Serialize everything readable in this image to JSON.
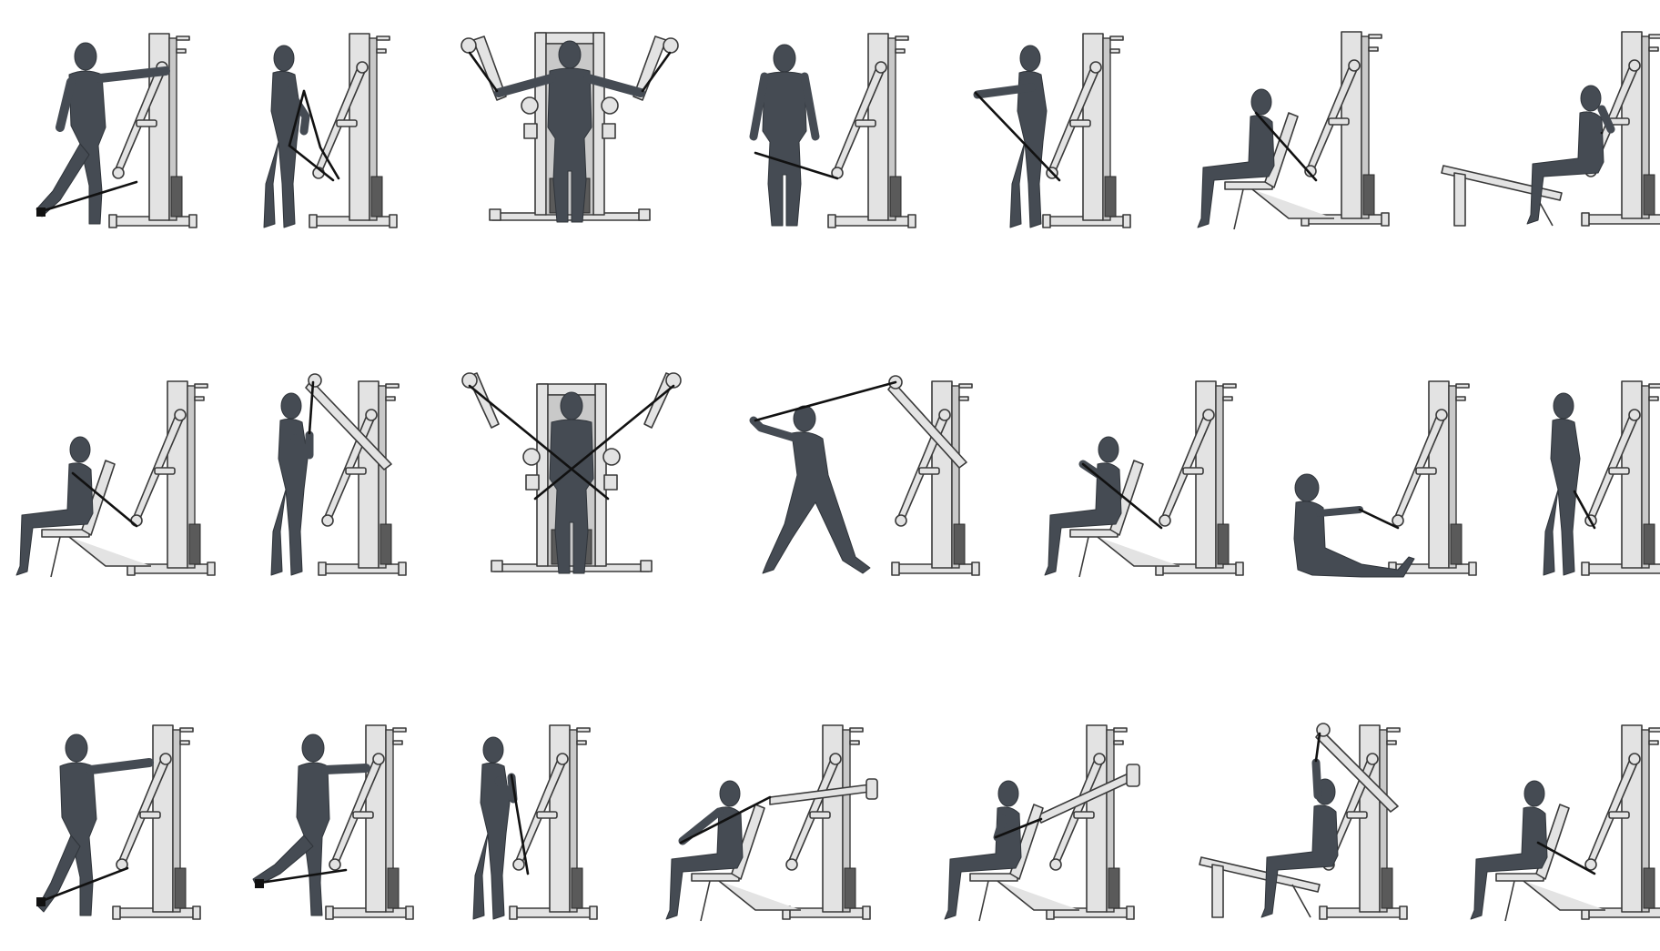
{
  "colors": {
    "background": "#ffffff",
    "figure": "#454b53",
    "machine_fill": "#e3e3e3",
    "machine_stroke": "#3a3a3a",
    "cable": "#111111",
    "weight_stack": "#5a5a5a"
  },
  "exercises": [
    {
      "id": "r1c1",
      "view": "side",
      "machine": "single-stack",
      "pose": "standing-hip-abduction",
      "attachment": "ankle-strap"
    },
    {
      "id": "r1c2",
      "view": "side",
      "machine": "single-stack",
      "pose": "standing-biceps-curl",
      "attachment": "low-pulley"
    },
    {
      "id": "r1c3",
      "view": "front",
      "machine": "dual-stack",
      "pose": "standing-lateral-raise-both-arms",
      "attachment": "dual-high-pulley"
    },
    {
      "id": "r1c4",
      "view": "front",
      "machine": "single-stack",
      "pose": "standing-lateral-raise",
      "attachment": "low-pulley"
    },
    {
      "id": "r1c5",
      "view": "side",
      "machine": "single-stack",
      "pose": "standing-front-raise",
      "attachment": "low-pulley"
    },
    {
      "id": "r1c6",
      "view": "side",
      "machine": "single-stack-with-bench",
      "pose": "seated-incline-press",
      "attachment": "low-pulley"
    },
    {
      "id": "r1c7",
      "view": "side",
      "machine": "single-stack-with-flat-bench",
      "pose": "seated-row-straddle",
      "attachment": "mid-pulley"
    },
    {
      "id": "r2c1",
      "view": "side",
      "machine": "single-stack-with-bench",
      "pose": "seated-chest-fly",
      "attachment": "mid-pulley"
    },
    {
      "id": "r2c2",
      "view": "side",
      "machine": "single-stack",
      "pose": "standing-triceps-pushdown",
      "attachment": "high-pulley"
    },
    {
      "id": "r2c3",
      "view": "front",
      "machine": "dual-stack",
      "pose": "standing-cable-crossover",
      "attachment": "dual-high-pulley"
    },
    {
      "id": "r2c4",
      "view": "side",
      "machine": "single-stack",
      "pose": "lunge-woodchop",
      "attachment": "high-pulley"
    },
    {
      "id": "r2c5",
      "view": "side",
      "machine": "single-stack-with-bench",
      "pose": "seated-incline-press",
      "attachment": "mid-pulley"
    },
    {
      "id": "r2c6",
      "view": "side",
      "machine": "single-stack",
      "pose": "seated-floor-row",
      "attachment": "low-pulley"
    },
    {
      "id": "r2c7",
      "view": "side",
      "machine": "single-stack",
      "pose": "standing-arm-extension",
      "attachment": "low-pulley"
    },
    {
      "id": "r3c1",
      "view": "side",
      "machine": "single-stack",
      "pose": "standing-hip-abduction",
      "attachment": "ankle-strap"
    },
    {
      "id": "r3c2",
      "view": "side",
      "machine": "single-stack",
      "pose": "standing-hip-extension",
      "attachment": "ankle-strap"
    },
    {
      "id": "r3c3",
      "view": "side",
      "machine": "single-stack",
      "pose": "standing-biceps-curl",
      "attachment": "low-pulley"
    },
    {
      "id": "r3c4",
      "view": "side",
      "machine": "single-stack-with-bench",
      "pose": "seated-incline-fly",
      "attachment": "mid-pulley"
    },
    {
      "id": "r3c5",
      "view": "side",
      "machine": "single-stack-with-bench",
      "pose": "seated-chest-press",
      "attachment": "mid-pulley"
    },
    {
      "id": "r3c6",
      "view": "side",
      "machine": "single-stack-with-flat-bench",
      "pose": "seated-lat-pulldown",
      "attachment": "high-pulley"
    },
    {
      "id": "r3c7",
      "view": "side",
      "machine": "single-stack-with-bench",
      "pose": "seated-chest-fly",
      "attachment": "low-pulley"
    }
  ]
}
